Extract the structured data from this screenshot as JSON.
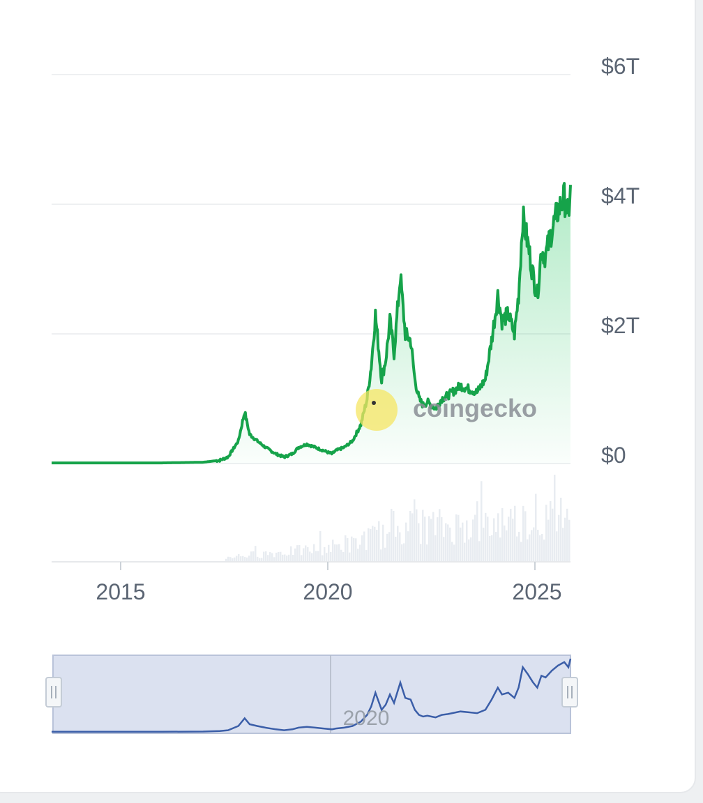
{
  "watermark": {
    "text": "coingecko"
  },
  "colors": {
    "line": "#16a34a",
    "fill_top": "#22c55e",
    "grid": "#eef0f2",
    "volume": "#e8ecf1",
    "navigator_fill": "#dbe1f0",
    "navigator_line": "#3b5ea8",
    "axis_text": "#5b6573"
  },
  "chart_data": {
    "type": "area",
    "title": "",
    "xlabel": "",
    "ylabel": "",
    "x_ticks": [
      "2015",
      "2020",
      "2025"
    ],
    "y_ticks": [
      "$0",
      "$2T",
      "$4T",
      "$6T"
    ],
    "ylim": [
      0,
      6
    ],
    "y_unit": "trillion USD",
    "xlim": [
      2013.35,
      2025.85
    ],
    "grid": true,
    "series": [
      {
        "x": [
          2013.35,
          2014.0,
          2015.0,
          2016.0,
          2017.0,
          2017.4,
          2017.6,
          2017.85,
          2018.0,
          2018.12,
          2018.3,
          2018.5,
          2018.75,
          2018.95,
          2019.15,
          2019.3,
          2019.5,
          2019.7,
          2019.9,
          2020.1,
          2020.2,
          2020.4,
          2020.6,
          2020.8,
          2020.95,
          2021.05,
          2021.15,
          2021.3,
          2021.4,
          2021.5,
          2021.6,
          2021.75,
          2021.87,
          2022.0,
          2022.1,
          2022.2,
          2022.3,
          2022.4,
          2022.5,
          2022.6,
          2022.75,
          2022.9,
          2023.0,
          2023.2,
          2023.4,
          2023.6,
          2023.8,
          2023.95,
          2024.1,
          2024.2,
          2024.35,
          2024.5,
          2024.6,
          2024.7,
          2024.82,
          2024.95,
          2025.05,
          2025.15,
          2025.25,
          2025.4,
          2025.55,
          2025.7,
          2025.8,
          2025.85
        ],
        "values": [
          0.01,
          0.01,
          0.01,
          0.01,
          0.02,
          0.05,
          0.1,
          0.35,
          0.8,
          0.45,
          0.35,
          0.25,
          0.15,
          0.1,
          0.15,
          0.25,
          0.3,
          0.25,
          0.2,
          0.15,
          0.2,
          0.25,
          0.35,
          0.6,
          1.0,
          1.5,
          2.3,
          1.3,
          1.6,
          2.2,
          1.7,
          2.9,
          2.0,
          1.9,
          1.3,
          1.0,
          0.9,
          0.95,
          0.9,
          0.85,
          1.0,
          1.05,
          1.1,
          1.2,
          1.15,
          1.1,
          1.3,
          1.9,
          2.6,
          2.2,
          2.3,
          2.0,
          2.6,
          3.8,
          3.4,
          2.9,
          2.6,
          3.3,
          3.2,
          3.6,
          3.9,
          4.1,
          3.8,
          4.3
        ]
      }
    ],
    "volume_note": "volume bars shown beneath main chart",
    "navigator": {
      "label": "2020"
    }
  }
}
